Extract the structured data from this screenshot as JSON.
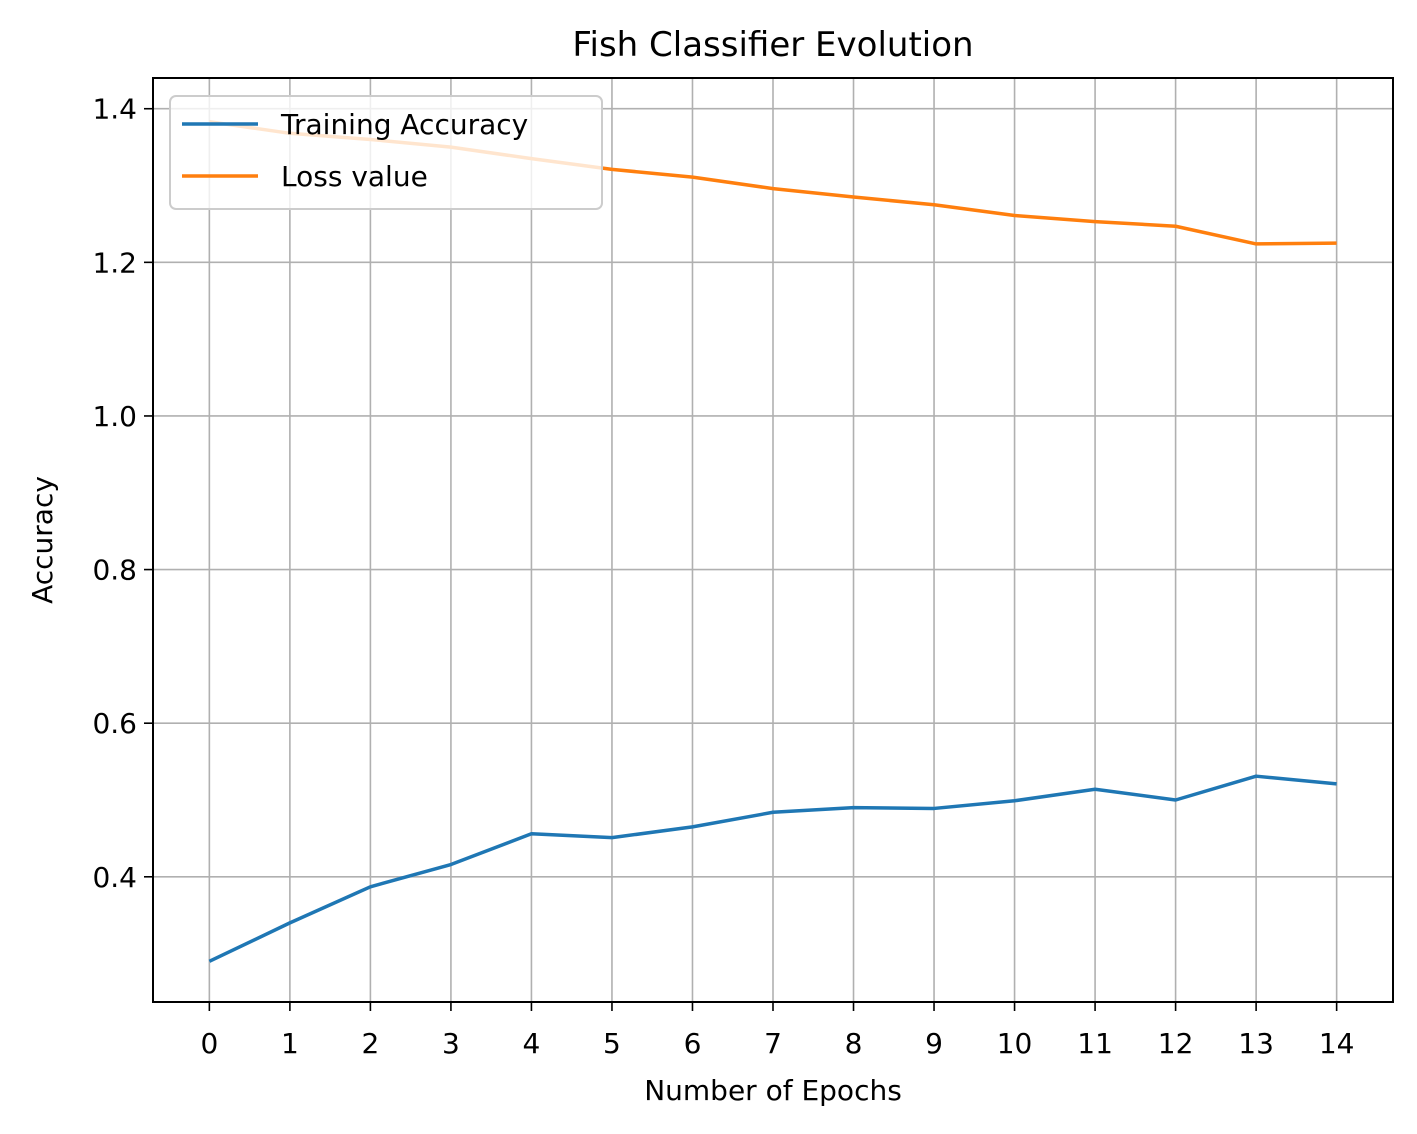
{
  "chart_data": {
    "type": "line",
    "title": "Fish Classifier Evolution",
    "xlabel": "Number of Epochs",
    "ylabel": "Accuracy",
    "x": [
      0,
      1,
      2,
      3,
      4,
      5,
      6,
      7,
      8,
      9,
      10,
      11,
      12,
      13,
      14
    ],
    "xticks": [
      "0",
      "1",
      "2",
      "3",
      "4",
      "5",
      "6",
      "7",
      "8",
      "9",
      "10",
      "11",
      "12",
      "13",
      "14"
    ],
    "yticks": [
      "0.4",
      "0.6",
      "0.8",
      "1.0",
      "1.2",
      "1.4"
    ],
    "ytick_values": [
      0.4,
      0.6,
      0.8,
      1.0,
      1.2,
      1.4
    ],
    "xlim": [
      -0.7,
      14.7
    ],
    "ylim": [
      0.237,
      1.44
    ],
    "grid": true,
    "legend_position": "upper-left",
    "series": [
      {
        "name": "Training Accuracy",
        "color": "#1f77b4",
        "values": [
          0.29,
          0.34,
          0.387,
          0.416,
          0.456,
          0.451,
          0.465,
          0.484,
          0.49,
          0.489,
          0.499,
          0.514,
          0.5,
          0.531,
          0.521
        ]
      },
      {
        "name": "Loss value",
        "color": "#ff7f0e",
        "values": [
          1.383,
          1.368,
          1.36,
          1.35,
          1.335,
          1.321,
          1.311,
          1.296,
          1.285,
          1.275,
          1.261,
          1.253,
          1.247,
          1.224,
          1.225
        ]
      }
    ]
  }
}
